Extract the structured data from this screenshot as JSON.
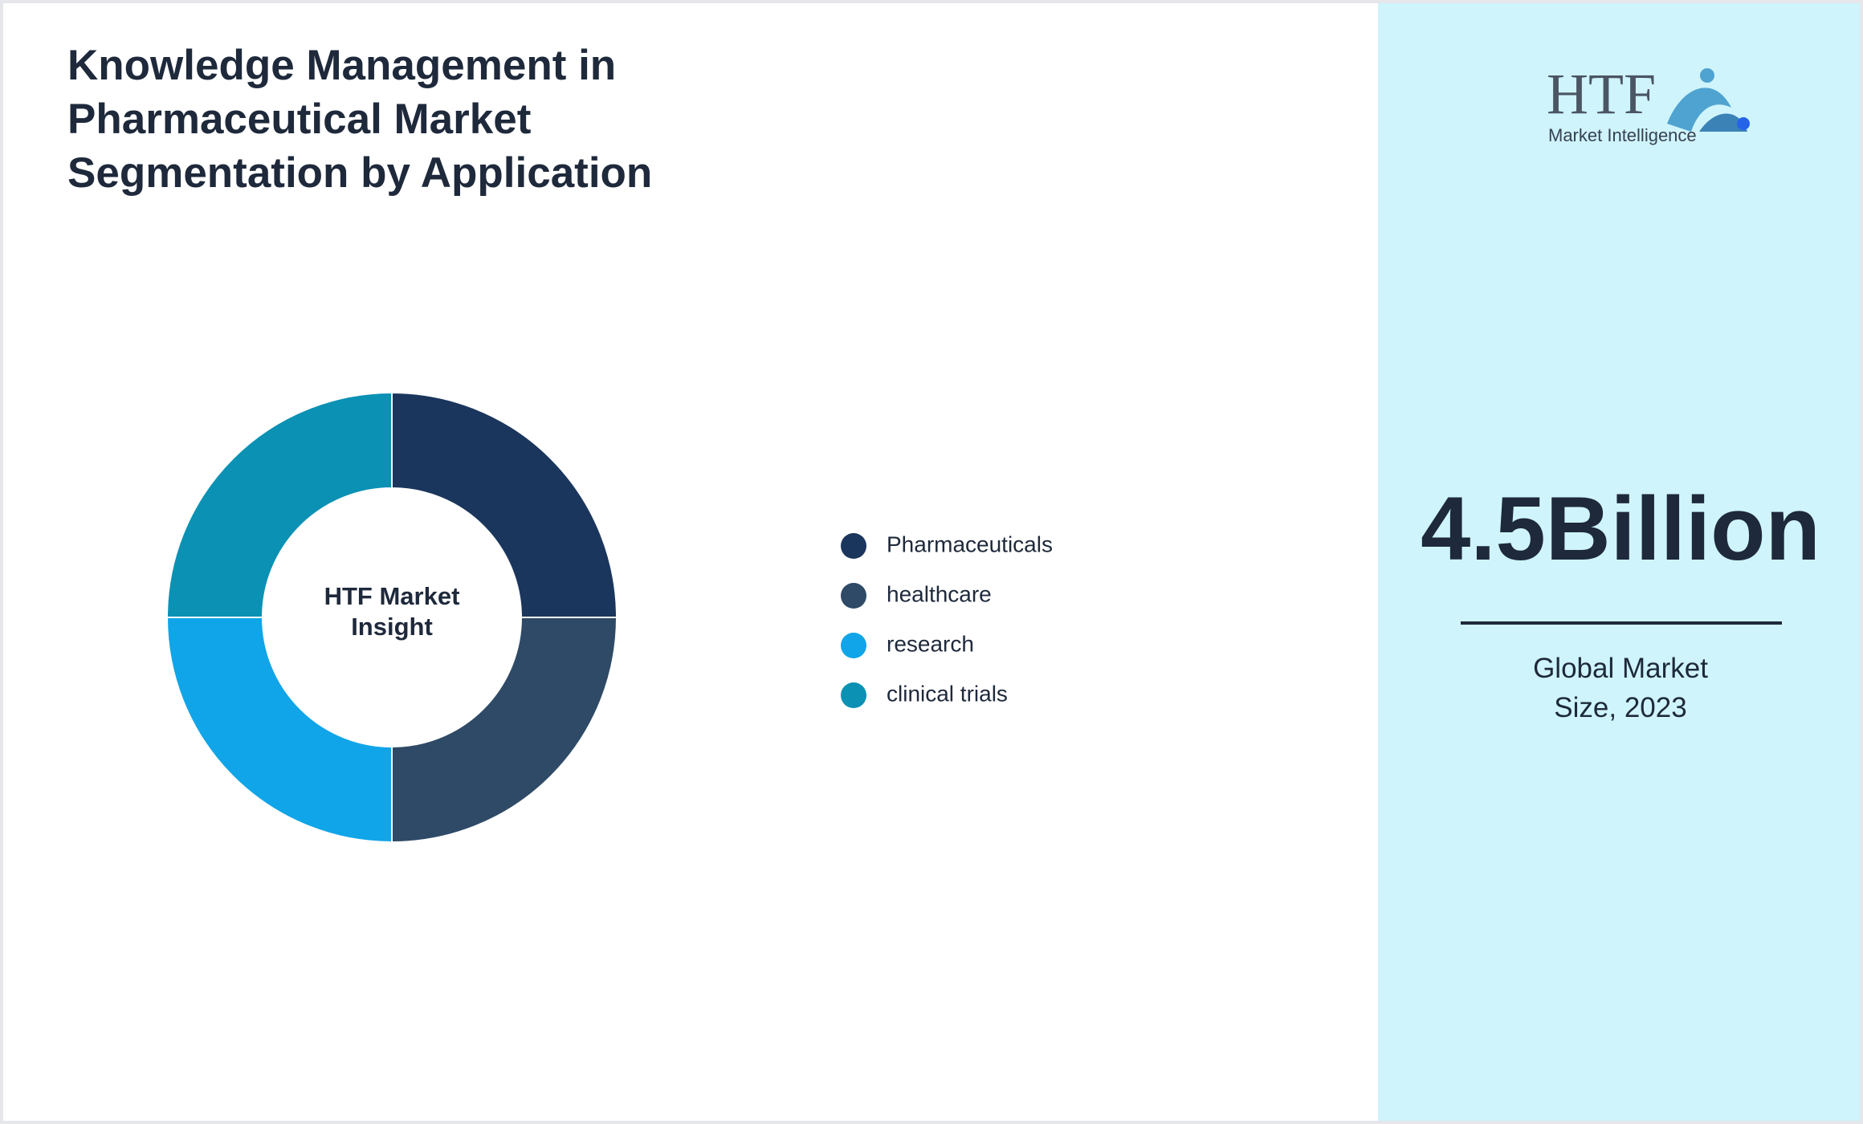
{
  "chart_data": {
    "type": "donut",
    "title": "Knowledge Management in Pharmaceutical Market Segmentation by Application",
    "center_label": "HTF Market Insight",
    "categories": [
      "Pharmaceuticals",
      "healthcare",
      "research",
      "clinical trials"
    ],
    "values": [
      25,
      25,
      25,
      25
    ],
    "colors": [
      "#1b365d",
      "#2e4a66",
      "#10a5e8",
      "#0a91b4"
    ]
  },
  "logo": {
    "brand": "HTF",
    "tagline": "Market Intelligence"
  },
  "market_size": {
    "value": "4.5Billion",
    "caption": "Global Market Size, 2023"
  }
}
